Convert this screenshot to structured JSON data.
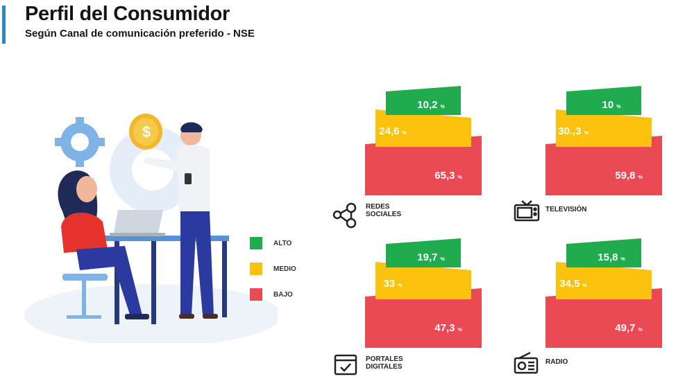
{
  "header": {
    "title": "Perfil del Consumidor",
    "subtitle": "Según Canal de comunicación preferido - NSE"
  },
  "legend": [
    {
      "label": "ALTO",
      "color": "#1fab4e"
    },
    {
      "label": "MEDIO",
      "color": "#fcc20d"
    },
    {
      "label": "BAJO",
      "color": "#e94a54"
    }
  ],
  "chart_data": [
    {
      "type": "bar",
      "channel": "REDES SOCIALES",
      "icon": "network-icon",
      "series": [
        {
          "name": "ALTO",
          "value": 10.2,
          "label": "10,2"
        },
        {
          "name": "MEDIO",
          "value": 24.6,
          "label": "24,6"
        },
        {
          "name": "BAJO",
          "value": 65.3,
          "label": "65,3"
        }
      ]
    },
    {
      "type": "bar",
      "channel": "TELEVISIÓN",
      "icon": "tv-icon",
      "series": [
        {
          "name": "ALTO",
          "value": 10,
          "label": "10"
        },
        {
          "name": "MEDIO",
          "value": 30.3,
          "label": "30.,3"
        },
        {
          "name": "BAJO",
          "value": 59.8,
          "label": "59,8"
        }
      ]
    },
    {
      "type": "bar",
      "channel": "PORTALES DIGITALES",
      "icon": "web-portal-icon",
      "series": [
        {
          "name": "ALTO",
          "value": 19.7,
          "label": "19,7"
        },
        {
          "name": "MEDIO",
          "value": 33,
          "label": "33"
        },
        {
          "name": "BAJO",
          "value": 47.3,
          "label": "47,3"
        }
      ]
    },
    {
      "type": "bar",
      "channel": "RADIO",
      "icon": "radio-icon",
      "series": [
        {
          "name": "ALTO",
          "value": 15.8,
          "label": "15,8"
        },
        {
          "name": "MEDIO",
          "value": 34.5,
          "label": "34,5"
        },
        {
          "name": "BAJO",
          "value": 49.7,
          "label": "49,7"
        }
      ]
    }
  ],
  "percent_sign": "%",
  "channels": [
    {
      "line1": "REDES",
      "line2": "SOCIALES"
    },
    {
      "line1": "TELEVISIÓN",
      "line2": ""
    },
    {
      "line1": "PORTALES",
      "line2": "DIGITALES"
    },
    {
      "line1": "RADIO",
      "line2": ""
    }
  ]
}
